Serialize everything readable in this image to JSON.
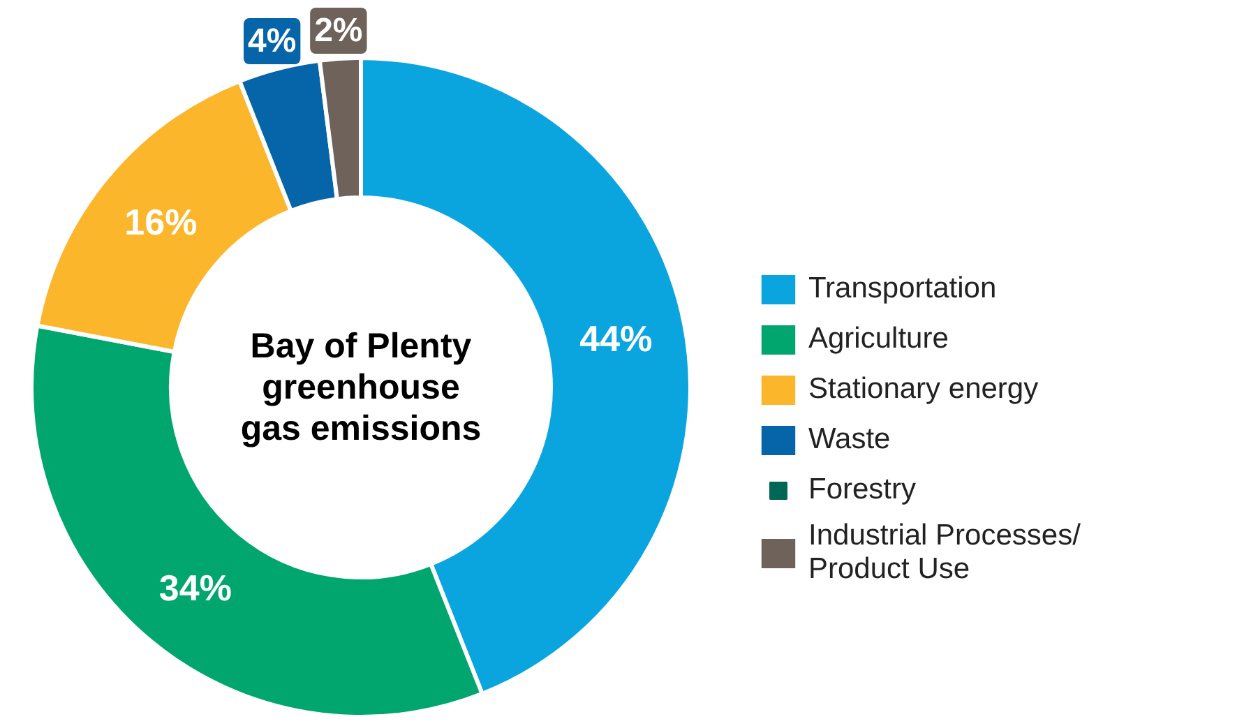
{
  "chart_data": {
    "type": "donut",
    "title": "Bay of Plenty greenhouse gas emissions",
    "categories": [
      "Transportation",
      "Agriculture",
      "Stationary energy",
      "Waste",
      "Forestry",
      "Industrial Processes/ Product Use"
    ],
    "values": [
      44,
      34,
      16,
      4,
      0,
      2
    ],
    "colors": [
      "#0aa5df",
      "#00a66e",
      "#fbb62b",
      "#0565a8",
      "#006655",
      "#6e625a"
    ],
    "value_labels": [
      "44%",
      "34%",
      "16%",
      "4%",
      null,
      "2%"
    ],
    "legend": "right"
  }
}
